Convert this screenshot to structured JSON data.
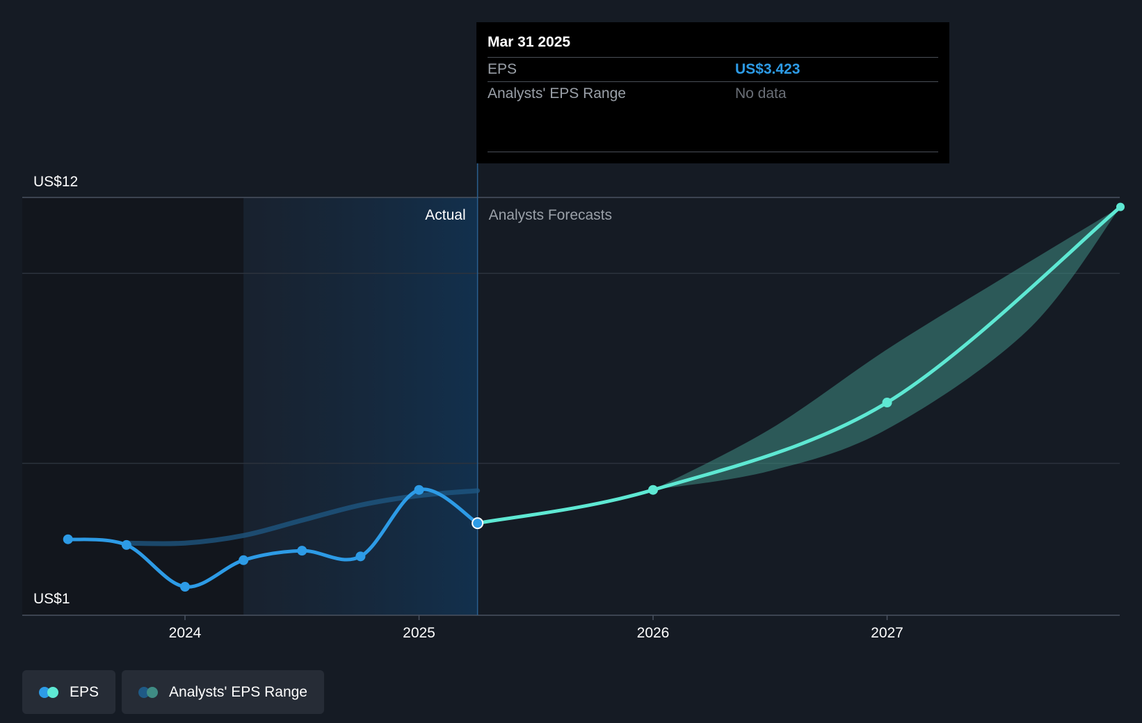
{
  "tooltip": {
    "date": "Mar 31 2025",
    "rows": [
      {
        "label": "EPS",
        "value": "US$3.423"
      },
      {
        "label": "Analysts' EPS Range",
        "value": "No data"
      }
    ]
  },
  "legend": {
    "items": [
      {
        "label": "EPS",
        "colors": [
          "#2d9be6",
          "#5ee8d3"
        ]
      },
      {
        "label": "Analysts' EPS Range",
        "colors": [
          "#1f5a86",
          "#3f8c84"
        ]
      }
    ]
  },
  "chart_data": {
    "type": "line",
    "y_axis_labels": {
      "top": "US$12",
      "bottom": "US$1"
    },
    "ylim": [
      1,
      12
    ],
    "x_ticks": [
      {
        "label": "2024",
        "x": 2024.0
      },
      {
        "label": "2025",
        "x": 2025.0
      },
      {
        "label": "2026",
        "x": 2026.0
      },
      {
        "label": "2027",
        "x": 2027.0
      }
    ],
    "regions": {
      "actual": "Actual",
      "forecast": "Analysts Forecasts"
    },
    "highlight_start_x": 2024.25,
    "divider_x": 2025.25,
    "series": [
      {
        "name": "EPS",
        "color": "#2d9be6",
        "points": [
          {
            "x": 2023.5,
            "y": 3.0
          },
          {
            "x": 2023.75,
            "y": 2.85
          },
          {
            "x": 2024.0,
            "y": 1.75
          },
          {
            "x": 2024.25,
            "y": 2.45
          },
          {
            "x": 2024.5,
            "y": 2.7
          },
          {
            "x": 2024.75,
            "y": 2.55
          },
          {
            "x": 2025.0,
            "y": 4.3
          },
          {
            "x": 2025.25,
            "y": 3.423
          }
        ]
      },
      {
        "name": "EPS",
        "color": "#5ee8d3",
        "points": [
          {
            "x": 2025.25,
            "y": 3.423
          },
          {
            "x": 2026.0,
            "y": 4.3
          },
          {
            "x": 2027.0,
            "y": 6.6
          },
          {
            "x": 2027.997,
            "y": 11.75
          }
        ]
      }
    ],
    "eps_range_band": {
      "color": "#3f8c84",
      "upper": [
        {
          "x": 2026.0,
          "y": 4.3
        },
        {
          "x": 2026.5,
          "y": 5.9
        },
        {
          "x": 2027.0,
          "y": 8.0
        },
        {
          "x": 2027.5,
          "y": 9.9
        },
        {
          "x": 2027.997,
          "y": 11.75
        }
      ],
      "lower": [
        {
          "x": 2027.997,
          "y": 11.75
        },
        {
          "x": 2027.6,
          "y": 8.5
        },
        {
          "x": 2027.0,
          "y": 5.9
        },
        {
          "x": 2026.5,
          "y": 4.8
        },
        {
          "x": 2026.0,
          "y": 4.3
        }
      ]
    },
    "past_consensus": {
      "color": "#1f5a86",
      "points": [
        {
          "x": 2023.75,
          "y": 2.9
        },
        {
          "x": 2024.0,
          "y": 2.9
        },
        {
          "x": 2024.25,
          "y": 3.1
        },
        {
          "x": 2024.5,
          "y": 3.5
        },
        {
          "x": 2024.75,
          "y": 3.9
        },
        {
          "x": 2025.0,
          "y": 4.15
        },
        {
          "x": 2025.25,
          "y": 4.28
        }
      ]
    },
    "highlighted_point": {
      "x": 2025.25,
      "y": 3.423
    }
  }
}
